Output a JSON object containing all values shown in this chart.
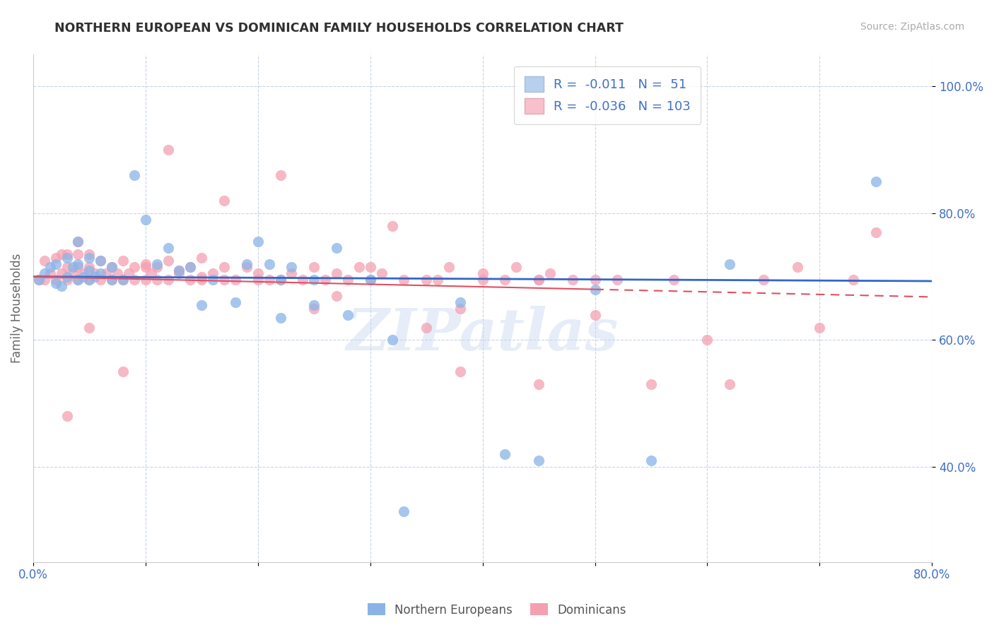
{
  "title": "NORTHERN EUROPEAN VS DOMINICAN FAMILY HOUSEHOLDS CORRELATION CHART",
  "source": "Source: ZipAtlas.com",
  "ylabel": "Family Households",
  "xlim": [
    0.0,
    0.8
  ],
  "ylim": [
    0.25,
    1.05
  ],
  "x_ticks": [
    0.0,
    0.1,
    0.2,
    0.3,
    0.4,
    0.5,
    0.6,
    0.7,
    0.8
  ],
  "x_tick_labels": [
    "0.0%",
    "",
    "",
    "",
    "",
    "",
    "",
    "",
    "80.0%"
  ],
  "y_ticks": [
    0.4,
    0.6,
    0.8,
    1.0
  ],
  "y_tick_labels": [
    "40.0%",
    "60.0%",
    "80.0%",
    "100.0%"
  ],
  "watermark": "ZIPatlas",
  "blue_color": "#8ab4e8",
  "pink_color": "#f4a0b0",
  "blue_line_color": "#3366cc",
  "pink_line_color": "#e05060",
  "legend_blue_face": "#b8d0f0",
  "legend_pink_face": "#f8c0cc",
  "text_color": "#4070c8",
  "title_color": "#303030",
  "R_blue": -0.011,
  "N_blue": 51,
  "R_pink": -0.036,
  "N_pink": 103,
  "blue_scatter_x": [
    0.005,
    0.01,
    0.015,
    0.02,
    0.02,
    0.025,
    0.03,
    0.03,
    0.035,
    0.04,
    0.04,
    0.04,
    0.045,
    0.05,
    0.05,
    0.05,
    0.055,
    0.06,
    0.06,
    0.07,
    0.07,
    0.08,
    0.09,
    0.1,
    0.11,
    0.12,
    0.13,
    0.14,
    0.15,
    0.16,
    0.18,
    0.19,
    0.2,
    0.21,
    0.22,
    0.23,
    0.25,
    0.27,
    0.3,
    0.32,
    0.22,
    0.25,
    0.28,
    0.33,
    0.38,
    0.42,
    0.45,
    0.5,
    0.55,
    0.62,
    0.75
  ],
  "blue_scatter_y": [
    0.695,
    0.705,
    0.715,
    0.69,
    0.72,
    0.685,
    0.7,
    0.73,
    0.715,
    0.695,
    0.72,
    0.755,
    0.7,
    0.695,
    0.71,
    0.73,
    0.7,
    0.705,
    0.725,
    0.695,
    0.715,
    0.695,
    0.86,
    0.79,
    0.72,
    0.745,
    0.71,
    0.715,
    0.655,
    0.695,
    0.66,
    0.72,
    0.755,
    0.72,
    0.695,
    0.715,
    0.695,
    0.745,
    0.695,
    0.6,
    0.635,
    0.655,
    0.64,
    0.33,
    0.66,
    0.42,
    0.41,
    0.68,
    0.41,
    0.72,
    0.85
  ],
  "pink_scatter_x": [
    0.005,
    0.01,
    0.01,
    0.015,
    0.02,
    0.02,
    0.025,
    0.025,
    0.03,
    0.03,
    0.03,
    0.035,
    0.04,
    0.04,
    0.04,
    0.04,
    0.045,
    0.05,
    0.05,
    0.05,
    0.055,
    0.06,
    0.06,
    0.065,
    0.07,
    0.07,
    0.075,
    0.08,
    0.08,
    0.085,
    0.09,
    0.09,
    0.1,
    0.1,
    0.105,
    0.11,
    0.11,
    0.12,
    0.12,
    0.13,
    0.13,
    0.14,
    0.14,
    0.15,
    0.15,
    0.16,
    0.17,
    0.17,
    0.18,
    0.19,
    0.2,
    0.21,
    0.22,
    0.23,
    0.24,
    0.25,
    0.26,
    0.27,
    0.28,
    0.29,
    0.3,
    0.31,
    0.33,
    0.35,
    0.36,
    0.37,
    0.38,
    0.4,
    0.42,
    0.43,
    0.45,
    0.46,
    0.48,
    0.5,
    0.52,
    0.55,
    0.57,
    0.6,
    0.62,
    0.65,
    0.68,
    0.7,
    0.73,
    0.75,
    0.45,
    0.38,
    0.32,
    0.27,
    0.22,
    0.17,
    0.12,
    0.08,
    0.05,
    0.03,
    0.1,
    0.15,
    0.2,
    0.25,
    0.3,
    0.35,
    0.4,
    0.45,
    0.5
  ],
  "pink_scatter_y": [
    0.695,
    0.695,
    0.725,
    0.705,
    0.695,
    0.73,
    0.705,
    0.735,
    0.695,
    0.715,
    0.735,
    0.705,
    0.695,
    0.715,
    0.735,
    0.755,
    0.705,
    0.695,
    0.715,
    0.735,
    0.705,
    0.695,
    0.725,
    0.705,
    0.695,
    0.715,
    0.705,
    0.695,
    0.725,
    0.705,
    0.695,
    0.715,
    0.695,
    0.715,
    0.705,
    0.695,
    0.715,
    0.695,
    0.725,
    0.705,
    0.71,
    0.695,
    0.715,
    0.695,
    0.73,
    0.705,
    0.695,
    0.715,
    0.695,
    0.715,
    0.705,
    0.695,
    0.695,
    0.705,
    0.695,
    0.715,
    0.695,
    0.705,
    0.695,
    0.715,
    0.695,
    0.705,
    0.695,
    0.62,
    0.695,
    0.715,
    0.65,
    0.705,
    0.695,
    0.715,
    0.695,
    0.705,
    0.695,
    0.64,
    0.695,
    0.53,
    0.695,
    0.6,
    0.53,
    0.695,
    0.715,
    0.62,
    0.695,
    0.77,
    0.53,
    0.55,
    0.78,
    0.67,
    0.86,
    0.82,
    0.9,
    0.55,
    0.62,
    0.48,
    0.72,
    0.7,
    0.695,
    0.65,
    0.715,
    0.695,
    0.695,
    0.695,
    0.695
  ]
}
